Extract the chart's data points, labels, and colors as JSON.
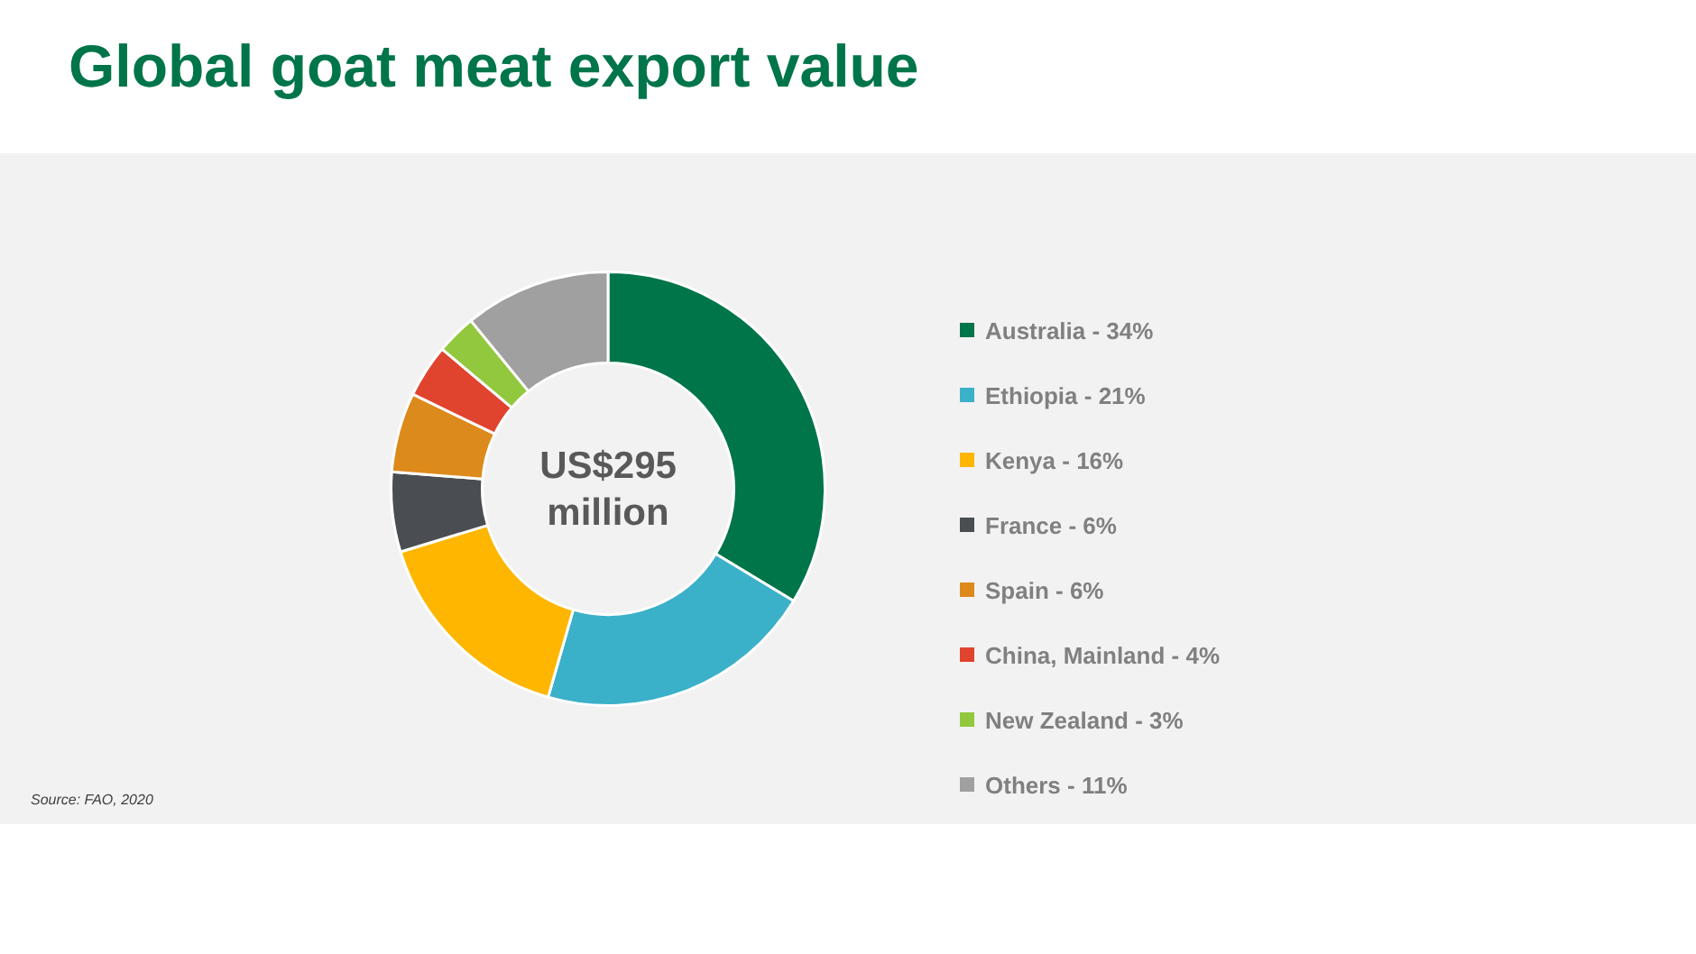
{
  "chart_data": {
    "type": "donut",
    "title": "Global goat meat export value",
    "categories": [
      "Australia - 34%",
      "Ethiopia - 21%",
      "Kenya - 16%",
      "France - 6%",
      "Spain - 6%",
      "China, Mainland - 4%",
      "New Zealand - 3%",
      "Others - 11%"
    ],
    "values": [
      34,
      21,
      16,
      6,
      6,
      4,
      3,
      11
    ],
    "colors": [
      "#00754a",
      "#3bb0c9",
      "#ffb600",
      "#4a4d52",
      "#dd8a1c",
      "#e0442f",
      "#92c83e",
      "#a0a0a0"
    ],
    "legend": "right",
    "annotations": [
      "US$295 million",
      "Source: FAO, 2020"
    ]
  }
}
